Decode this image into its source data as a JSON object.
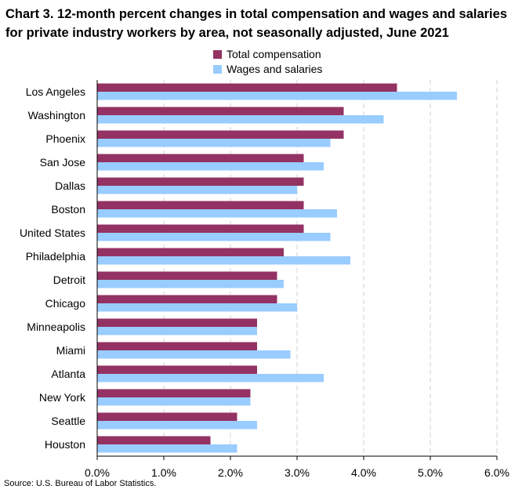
{
  "chart_data": {
    "type": "bar",
    "orientation": "horizontal",
    "title": "Chart 3. 12-month percent changes in total compensation and wages and salaries for private industry workers by area, not seasonally adjusted, June 2021",
    "categories": [
      "Los Angeles",
      "Washington",
      "Phoenix",
      "San Jose",
      "Dallas",
      "Boston",
      "United States",
      "Philadelphia",
      "Detroit",
      "Chicago",
      "Minneapolis",
      "Miami",
      "Atlanta",
      "New York",
      "Seattle",
      "Houston"
    ],
    "series": [
      {
        "name": "Total compensation",
        "color": "#943263",
        "values": [
          4.5,
          3.7,
          3.7,
          3.1,
          3.1,
          3.1,
          3.1,
          2.8,
          2.7,
          2.7,
          2.4,
          2.4,
          2.4,
          2.3,
          2.1,
          1.7
        ]
      },
      {
        "name": "Wages and salaries",
        "color": "#99ccff",
        "values": [
          5.4,
          4.3,
          3.5,
          3.4,
          3.0,
          3.6,
          3.5,
          3.8,
          2.8,
          3.0,
          2.4,
          2.9,
          3.4,
          2.3,
          2.4,
          2.1
        ]
      }
    ],
    "xlim": [
      0,
      6.0
    ],
    "xticks": [
      0,
      1,
      2,
      3,
      4,
      5,
      6
    ],
    "xtick_labels": [
      "0.0%",
      "1.0%",
      "2.0%",
      "3.0%",
      "4.0%",
      "5.0%",
      "6.0%"
    ],
    "grid": "vertical dashed",
    "legend_position": "top-center"
  },
  "source_note": "Source: U.S. Bureau of Labor Statistics."
}
